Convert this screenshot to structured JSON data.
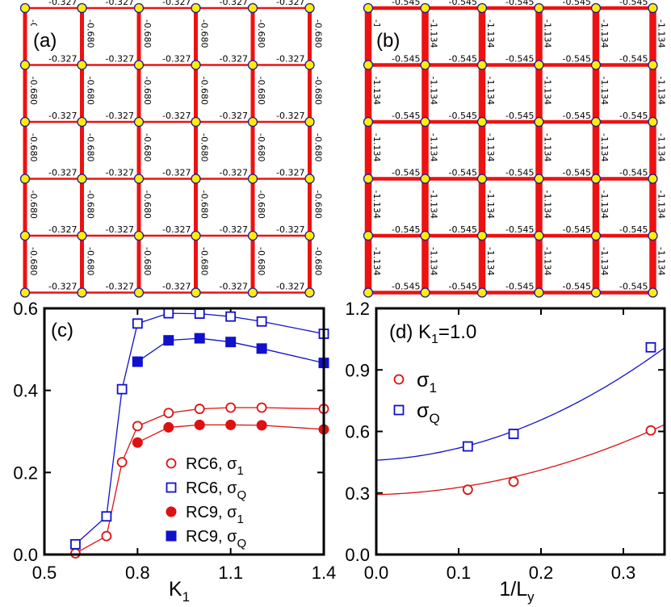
{
  "lattices": [
    {
      "tag": "(a)",
      "horizontal_bond_label": "-0.327",
      "vertical_bond_label": "-0.680",
      "horizontal_bond_value": -0.327,
      "vertical_bond_value": -0.68,
      "rows": 6,
      "cols": 6
    },
    {
      "tag": "(b)",
      "horizontal_bond_label": "-0.545",
      "vertical_bond_label": "-1.134",
      "horizontal_bond_value": -0.545,
      "vertical_bond_value": -1.134,
      "rows": 6,
      "cols": 6
    }
  ],
  "colors": {
    "bond": "#ee1111",
    "site_fill": "#ffee00",
    "site_stroke": "#1a1aa6",
    "red_series": "#dd1111",
    "blue_series": "#1111cc"
  },
  "chart_data": [
    {
      "panel": "(c)",
      "type": "line",
      "title": "",
      "xlabel": "K",
      "xlabel_sub": "1",
      "ylabel": "",
      "xlim": [
        0.5,
        1.4
      ],
      "ylim": [
        0.0,
        0.6
      ],
      "xticks": [
        "0.5",
        "0.8",
        "1.1",
        "1.4"
      ],
      "yticks": [
        "0.0",
        "0.2",
        "0.4",
        "0.6"
      ],
      "xtick_values": [
        0.5,
        0.8,
        1.1,
        1.4
      ],
      "ytick_values": [
        0.0,
        0.2,
        0.4,
        0.6
      ],
      "legend_position": "bottom-right",
      "series": [
        {
          "name": "RC6, σ",
          "sub": "1",
          "color": "red",
          "marker": "circle-open",
          "x": [
            0.6,
            0.7,
            0.75,
            0.8,
            0.9,
            1.0,
            1.1,
            1.2,
            1.4
          ],
          "y": [
            0.003,
            0.045,
            0.225,
            0.313,
            0.345,
            0.355,
            0.358,
            0.358,
            0.355
          ]
        },
        {
          "name": "RC6, σ",
          "sub": "Q",
          "color": "blue",
          "marker": "square-open",
          "x": [
            0.6,
            0.7,
            0.75,
            0.8,
            0.9,
            1.0,
            1.1,
            1.2,
            1.4
          ],
          "y": [
            0.025,
            0.093,
            0.403,
            0.563,
            0.588,
            0.587,
            0.58,
            0.568,
            0.538
          ]
        },
        {
          "name": "RC9, σ",
          "sub": "1",
          "color": "red",
          "marker": "circle-filled",
          "x": [
            0.8,
            0.9,
            1.0,
            1.1,
            1.2,
            1.4
          ],
          "y": [
            0.273,
            0.31,
            0.316,
            0.316,
            0.315,
            0.305
          ]
        },
        {
          "name": "RC9, σ",
          "sub": "Q",
          "color": "blue",
          "marker": "square-filled",
          "x": [
            0.8,
            0.9,
            1.0,
            1.1,
            1.2,
            1.4
          ],
          "y": [
            0.47,
            0.522,
            0.527,
            0.518,
            0.502,
            0.467
          ]
        }
      ]
    },
    {
      "panel": "(d)",
      "type": "scatter",
      "title_prefix": "(d) K",
      "title_sub": "1",
      "title_suffix": "=1.0",
      "xlabel": "1/L",
      "xlabel_sub": "y",
      "ylabel": "",
      "xlim": [
        0.0,
        0.35
      ],
      "ylim": [
        0.0,
        1.2
      ],
      "xticks": [
        "0.0",
        "0.1",
        "0.2",
        "0.3"
      ],
      "yticks": [
        "0.0",
        "0.3",
        "0.6",
        "0.9",
        "1.2"
      ],
      "xtick_values": [
        0.0,
        0.1,
        0.2,
        0.3
      ],
      "ytick_values": [
        0.0,
        0.3,
        0.6,
        0.9,
        1.2
      ],
      "legend_position": "top-left",
      "series": [
        {
          "name": "σ",
          "sub": "1",
          "color": "red",
          "marker": "circle-open",
          "x": [
            0.1111,
            0.1667,
            0.3333
          ],
          "y": [
            0.316,
            0.355,
            0.605
          ],
          "fit": [
            0.292,
            0.1,
            2.5
          ]
        },
        {
          "name": "σ",
          "sub": "Q",
          "color": "blue",
          "marker": "square-open",
          "x": [
            0.1111,
            0.1667,
            0.3333
          ],
          "y": [
            0.527,
            0.588,
            1.01
          ],
          "fit": [
            0.46,
            0.2,
            3.9
          ]
        }
      ]
    }
  ]
}
